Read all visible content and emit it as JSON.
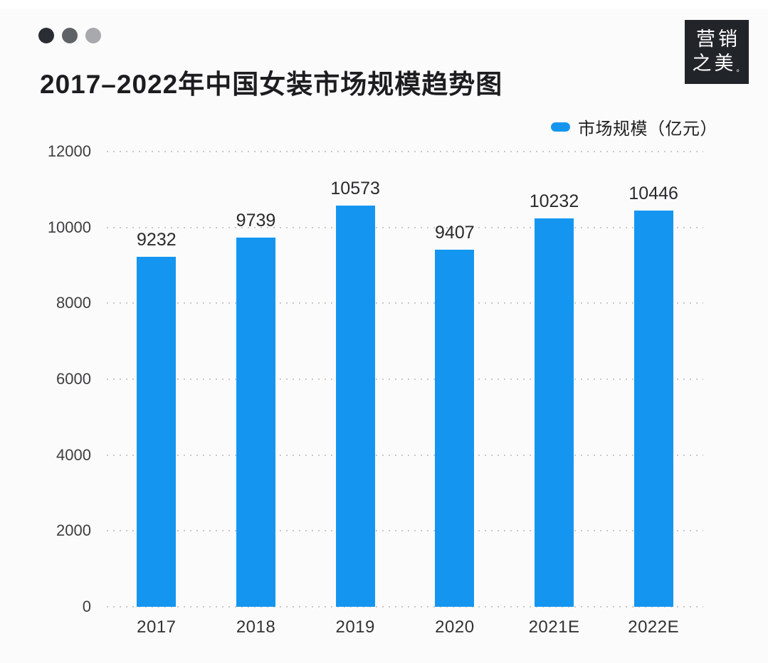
{
  "window_dots": {
    "colors": [
      "#2a2d33",
      "#5f6267",
      "#a7a9ac"
    ]
  },
  "header": {
    "title": "2017–2022年中国女装市场规模趋势图"
  },
  "logo": {
    "line1": "营销",
    "line2": "之美",
    "mark": "。"
  },
  "legend": {
    "label": "市场规模（亿元）",
    "color": "#1496f0"
  },
  "chart_data": {
    "type": "bar",
    "title": "2017–2022年中国女装市场规模趋势图",
    "categories": [
      "2017",
      "2018",
      "2019",
      "2020",
      "2021E",
      "2022E"
    ],
    "series": [
      {
        "name": "市场规模（亿元）",
        "values": [
          9232,
          9739,
          10573,
          9407,
          10232,
          10446
        ]
      }
    ],
    "xlabel": "",
    "ylabel": "",
    "ylim": [
      0,
      12000
    ],
    "yticks": [
      0,
      2000,
      4000,
      6000,
      8000,
      10000,
      12000
    ],
    "grid": "horizontal-dotted",
    "legend_position": "top-right",
    "bar_color": "#1496f0",
    "value_labels": true
  }
}
